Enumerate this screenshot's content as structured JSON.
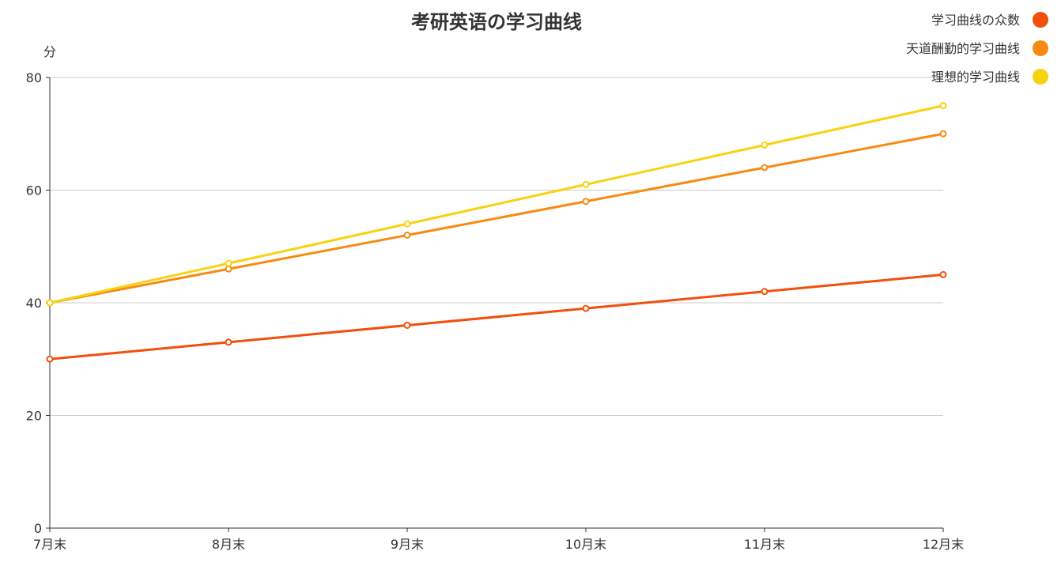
{
  "chart_data": {
    "type": "line",
    "title": "考研英语の学习曲线",
    "ylabel": "分",
    "xlabel": "",
    "categories": [
      "7月末",
      "8月末",
      "9月末",
      "10月末",
      "11月末",
      "12月末"
    ],
    "ylim": [
      0,
      80
    ],
    "yticks": [
      0,
      20,
      40,
      60,
      80
    ],
    "grid": true,
    "legend_position": "top-right",
    "series": [
      {
        "name": "学习曲线の众数",
        "color": "#f24e0c",
        "values": [
          30,
          33,
          36,
          39,
          42,
          45
        ]
      },
      {
        "name": "天道酬勤的学习曲线",
        "color": "#f88a12",
        "values": [
          40,
          46,
          52,
          58,
          64,
          70
        ]
      },
      {
        "name": "理想的学习曲线",
        "color": "#f8d20f",
        "values": [
          40,
          47,
          54,
          61,
          68,
          75
        ]
      }
    ]
  }
}
